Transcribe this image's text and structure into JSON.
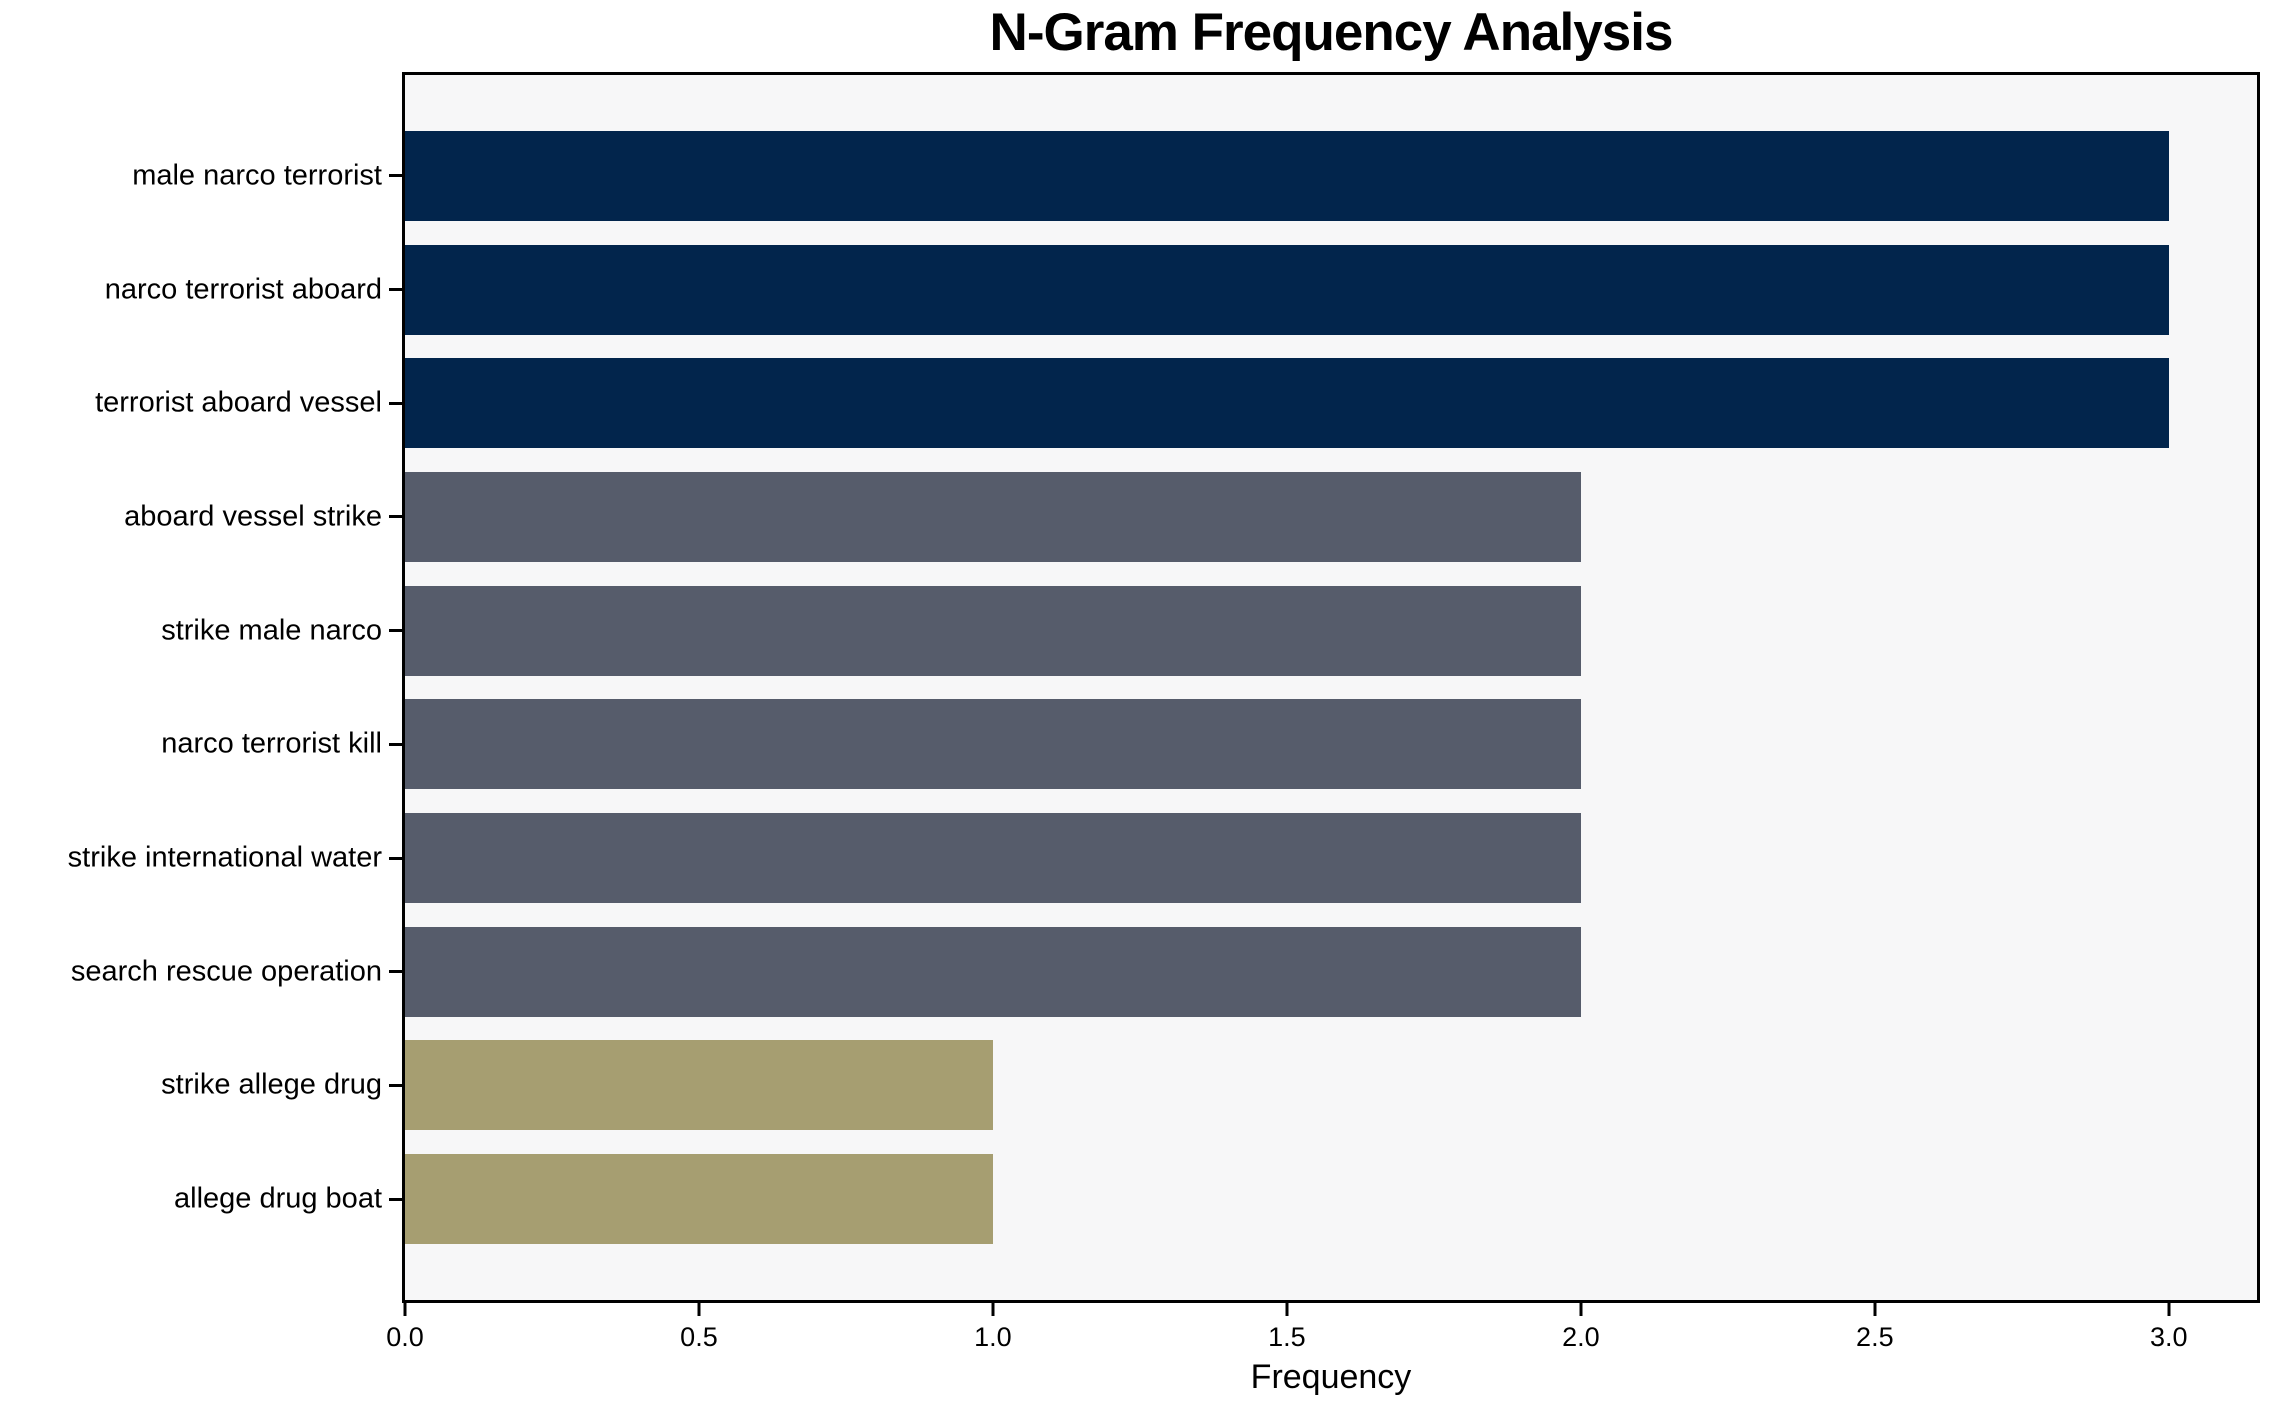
{
  "title": "N-Gram Frequency Analysis",
  "colors": {
    "navy": "#02254c",
    "slate": "#565c6b",
    "khaki": "#a69e71",
    "plot_background": "#f7f7f8",
    "figure_background": "#ffffff",
    "axis": "#000000",
    "text": "#000000"
  },
  "chart_data": {
    "type": "bar",
    "orientation": "horizontal",
    "title": "N-Gram Frequency Analysis",
    "xlabel": "Frequency",
    "ylabel": "",
    "categories": [
      "male narco terrorist",
      "narco terrorist aboard",
      "terrorist aboard vessel",
      "aboard vessel strike",
      "strike male narco",
      "narco terrorist kill",
      "strike international water",
      "search rescue operation",
      "strike allege drug",
      "allege drug boat"
    ],
    "values": [
      3,
      3,
      3,
      2,
      2,
      2,
      2,
      2,
      1,
      1
    ],
    "bar_colors": [
      "#02254c",
      "#02254c",
      "#02254c",
      "#565c6b",
      "#565c6b",
      "#565c6b",
      "#565c6b",
      "#565c6b",
      "#a69e71",
      "#a69e71"
    ],
    "xlim": [
      0,
      3.15
    ],
    "xticks": [
      0.0,
      0.5,
      1.0,
      1.5,
      2.0,
      2.5,
      3.0
    ],
    "xtick_labels": [
      "0.0",
      "0.5",
      "1.0",
      "1.5",
      "2.0",
      "2.5",
      "3.0"
    ],
    "grid": false,
    "legend": null
  }
}
